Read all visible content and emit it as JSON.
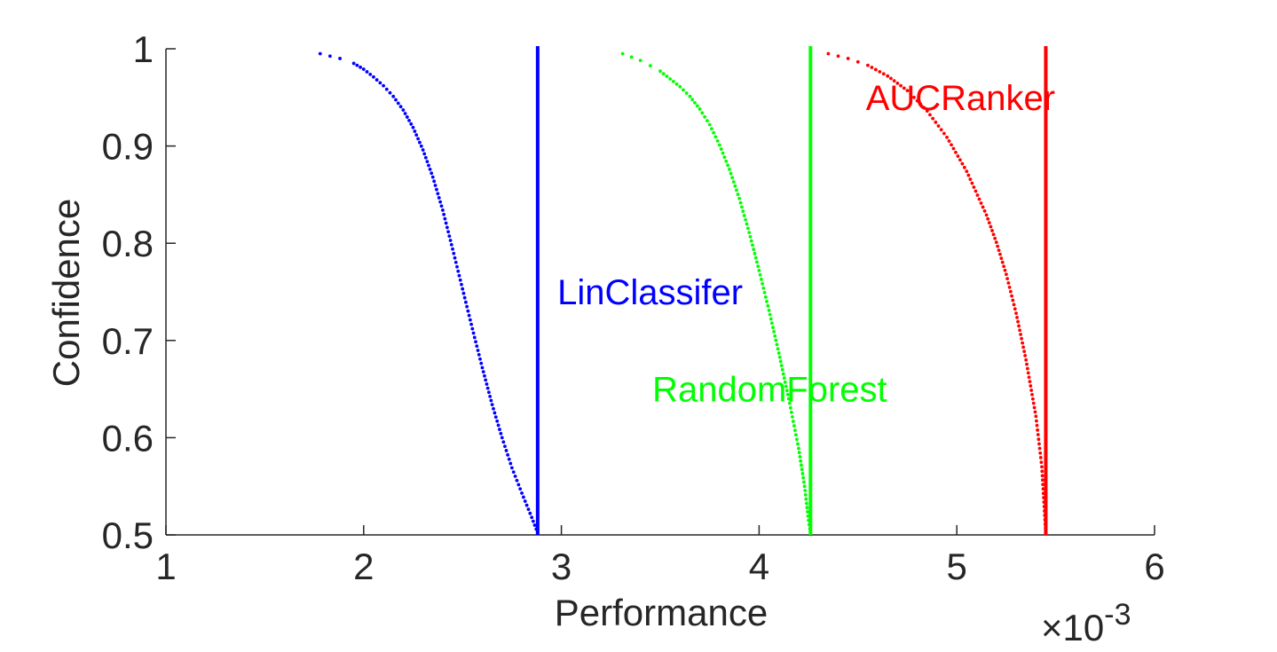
{
  "chart_data": {
    "type": "scatter",
    "title": "",
    "xlabel": "Performance",
    "ylabel": "Confidence",
    "x_exponent": {
      "base": "×10",
      "power": "-3"
    },
    "xlim": [
      1,
      6
    ],
    "ylim": [
      0.5,
      1
    ],
    "x_ticks": [
      "1",
      "2",
      "3",
      "4",
      "5",
      "6"
    ],
    "x_tick_values": [
      1,
      2,
      3,
      4,
      5,
      6
    ],
    "y_ticks": [
      "0.5",
      "0.6",
      "0.7",
      "0.8",
      "0.9",
      "1"
    ],
    "y_tick_values": [
      0.5,
      0.6,
      0.7,
      0.8,
      0.9,
      1.0
    ],
    "grid": false,
    "series": [
      {
        "name": "LinClassifer",
        "color": "#0000ff",
        "vline_x": 2.88,
        "label_at": {
          "x": 2.98,
          "y": 0.75
        },
        "points": [
          [
            1.78,
            0.995
          ],
          [
            1.88,
            0.99
          ],
          [
            1.95,
            0.985
          ],
          [
            2.0,
            0.979
          ],
          [
            2.05,
            0.971
          ],
          [
            2.1,
            0.962
          ],
          [
            2.15,
            0.951
          ],
          [
            2.2,
            0.937
          ],
          [
            2.25,
            0.919
          ],
          [
            2.3,
            0.896
          ],
          [
            2.35,
            0.868
          ],
          [
            2.4,
            0.834
          ],
          [
            2.45,
            0.794
          ],
          [
            2.5,
            0.753
          ],
          [
            2.55,
            0.712
          ],
          [
            2.6,
            0.672
          ],
          [
            2.65,
            0.634
          ],
          [
            2.7,
            0.6
          ],
          [
            2.75,
            0.569
          ],
          [
            2.8,
            0.543
          ],
          [
            2.85,
            0.518
          ],
          [
            2.88,
            0.502
          ]
        ]
      },
      {
        "name": "RandomForest",
        "color": "#00ff00",
        "vline_x": 4.26,
        "label_at": {
          "x": 3.46,
          "y": 0.65
        },
        "points": [
          [
            3.31,
            0.995
          ],
          [
            3.4,
            0.988
          ],
          [
            3.5,
            0.977
          ],
          [
            3.6,
            0.961
          ],
          [
            3.65,
            0.951
          ],
          [
            3.7,
            0.938
          ],
          [
            3.75,
            0.922
          ],
          [
            3.8,
            0.901
          ],
          [
            3.85,
            0.876
          ],
          [
            3.9,
            0.846
          ],
          [
            3.95,
            0.811
          ],
          [
            4.0,
            0.772
          ],
          [
            4.05,
            0.731
          ],
          [
            4.1,
            0.687
          ],
          [
            4.15,
            0.64
          ],
          [
            4.2,
            0.589
          ],
          [
            4.23,
            0.55
          ],
          [
            4.25,
            0.515
          ],
          [
            4.26,
            0.502
          ]
        ]
      },
      {
        "name": "AUCRanker",
        "color": "#ff0000",
        "vline_x": 5.45,
        "label_at": {
          "x": 4.54,
          "y": 0.95
        },
        "points": [
          [
            4.35,
            0.995
          ],
          [
            4.45,
            0.99
          ],
          [
            4.55,
            0.983
          ],
          [
            4.65,
            0.972
          ],
          [
            4.75,
            0.957
          ],
          [
            4.85,
            0.936
          ],
          [
            4.95,
            0.909
          ],
          [
            5.05,
            0.874
          ],
          [
            5.15,
            0.829
          ],
          [
            5.2,
            0.801
          ],
          [
            5.25,
            0.768
          ],
          [
            5.3,
            0.728
          ],
          [
            5.35,
            0.68
          ],
          [
            5.4,
            0.622
          ],
          [
            5.43,
            0.57
          ],
          [
            5.45,
            0.502
          ]
        ]
      }
    ]
  }
}
